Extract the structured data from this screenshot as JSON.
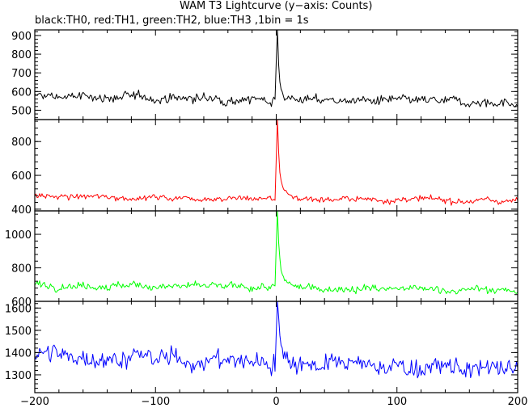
{
  "chart_data": {
    "type": "line",
    "title": "WAM T3 Lightcurve (y−axis: Counts)",
    "subtitle": "black:TH0, red:TH1, green:TH2, blue:TH3 ,1bin = 1s",
    "xlim": [
      -200,
      200
    ],
    "x_ticks": [
      "−200",
      "−100",
      "0",
      "100",
      "200"
    ],
    "x_tick_values": [
      -200,
      -100,
      0,
      100,
      200
    ],
    "grid": false,
    "panels": [
      {
        "name": "TH0",
        "color": "#000000",
        "ylim": [
          450,
          930
        ],
        "y_ticks": [
          "900",
          "800",
          "700",
          "600",
          "500"
        ],
        "y_tick_values": [
          900,
          800,
          700,
          600,
          500
        ],
        "baseline_start": 575,
        "baseline_end": 540,
        "noise": 28,
        "peak_time": 1,
        "peak_value": 910,
        "peak_tail": 610
      },
      {
        "name": "TH1",
        "color": "#ff0000",
        "ylim": [
          390,
          930
        ],
        "y_ticks": [
          "800",
          "600",
          "400"
        ],
        "y_tick_values": [
          800,
          600,
          400
        ],
        "baseline_start": 475,
        "baseline_end": 450,
        "noise": 20,
        "peak_time": 1,
        "peak_value": 910,
        "peak_tail": 560
      },
      {
        "name": "TH2",
        "color": "#00ff00",
        "ylim": [
          600,
          1140
        ],
        "y_ticks": [
          "1000",
          "800",
          "600"
        ],
        "y_tick_values": [
          1000,
          800,
          600
        ],
        "baseline_start": 700,
        "baseline_end": 665,
        "noise": 25,
        "peak_time": 1,
        "peak_value": 1130,
        "peak_tail": 760
      },
      {
        "name": "TH3",
        "color": "#0000ff",
        "ylim": [
          1220,
          1630
        ],
        "y_ticks": [
          "1600",
          "1500",
          "1400",
          "1300"
        ],
        "y_tick_values": [
          1600,
          1500,
          1400,
          1300
        ],
        "baseline_start": 1390,
        "baseline_end": 1320,
        "noise": 48,
        "peak_time": 1,
        "peak_value": 1615,
        "peak_tail": 1450
      }
    ]
  }
}
